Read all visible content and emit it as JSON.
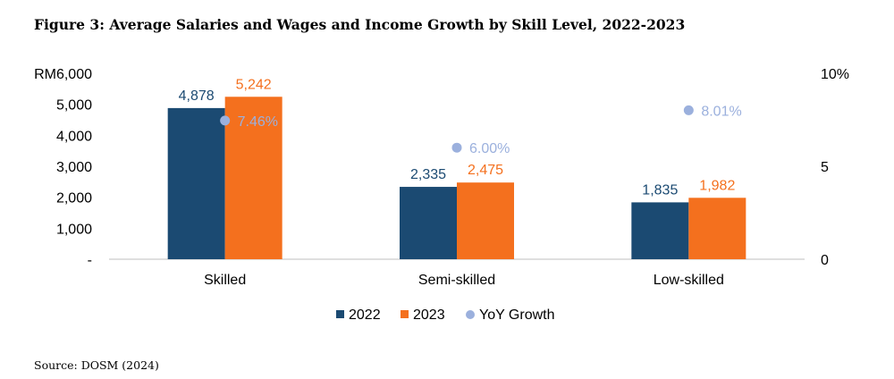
{
  "title": "Figure 3: Average Salaries and Wages and Income Growth by Skill Level, 2022-2023",
  "source": "Source: DOSM (2024)",
  "colors": {
    "s2022": "#1b4a72",
    "s2023": "#f4701e",
    "growth": "#9bb0dd"
  },
  "chart_data": {
    "type": "bar",
    "categories": [
      "Skilled",
      "Semi-skilled",
      "Low-skilled"
    ],
    "series": [
      {
        "name": "2022",
        "values": [
          4878,
          2335,
          1835
        ],
        "labels": [
          "4,878",
          "2,335",
          "1,835"
        ]
      },
      {
        "name": "2023",
        "values": [
          5242,
          2475,
          1982
        ],
        "labels": [
          "5,242",
          "2,475",
          "1,982"
        ]
      }
    ],
    "secondary_series": {
      "name": "YoY Growth",
      "type": "scatter",
      "values": [
        7.46,
        6.0,
        8.01
      ],
      "labels": [
        "7.46%",
        "6.00%",
        "8.01%"
      ]
    },
    "y_left": {
      "ylim": [
        0,
        6000
      ],
      "ticks": [
        "-",
        "1,000",
        "2,000",
        "3,000",
        "4,000",
        "5,000",
        "RM6,000"
      ]
    },
    "y_right": {
      "ylim": [
        0,
        10
      ],
      "ticks": [
        "0",
        "5",
        "10%"
      ]
    },
    "legend": {
      "position": "bottom",
      "items": [
        "2022",
        "2023",
        "YoY Growth"
      ]
    }
  }
}
